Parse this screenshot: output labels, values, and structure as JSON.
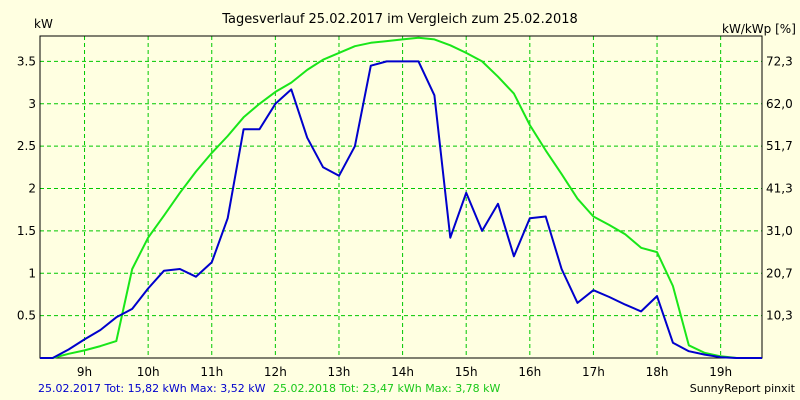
{
  "chart_data": {
    "type": "line",
    "title": "Tagesverlauf 25.02.2017 im Vergleich zum 25.02.2018",
    "ylabel_left": "kW",
    "ylabel_right": "kW/kWp [%]",
    "xlim": [
      8.3,
      19.65
    ],
    "ylim": [
      0,
      3.8
    ],
    "x_ticks": [
      9,
      10,
      11,
      12,
      13,
      14,
      15,
      16,
      17,
      18,
      19
    ],
    "x_tick_labels": [
      "9h",
      "10h",
      "11h",
      "12h",
      "13h",
      "14h",
      "15h",
      "16h",
      "17h",
      "18h",
      "19h"
    ],
    "y_ticks": [
      0.5,
      1,
      1.5,
      2,
      2.5,
      3,
      3.5
    ],
    "y_tick_labels": [
      "0.5",
      "1",
      "1.5",
      "2",
      "2.5",
      "3",
      "3.5"
    ],
    "y2_tick_labels": [
      "10,3",
      "20,7",
      "31,0",
      "41,3",
      "51,7",
      "62,0",
      "72,3"
    ],
    "grid": true,
    "colors": {
      "background": "#ffffe1",
      "plot_bg": "#ffffe1",
      "grid": "#00c800",
      "series_2017": "#0000cc",
      "series_2018": "#19e619",
      "axis": "#000000"
    },
    "series": [
      {
        "name": "25.02.2017",
        "color": "#0000cc",
        "points": [
          [
            8.3,
            0.0
          ],
          [
            8.5,
            0.0
          ],
          [
            8.75,
            0.1
          ],
          [
            9.0,
            0.22
          ],
          [
            9.25,
            0.33
          ],
          [
            9.5,
            0.48
          ],
          [
            9.75,
            0.58
          ],
          [
            10.0,
            0.82
          ],
          [
            10.25,
            1.03
          ],
          [
            10.5,
            1.05
          ],
          [
            10.75,
            0.96
          ],
          [
            11.0,
            1.13
          ],
          [
            11.25,
            1.65
          ],
          [
            11.5,
            2.7
          ],
          [
            11.75,
            2.7
          ],
          [
            12.0,
            3.0
          ],
          [
            12.25,
            3.17
          ],
          [
            12.5,
            2.6
          ],
          [
            12.75,
            2.25
          ],
          [
            13.0,
            2.15
          ],
          [
            13.25,
            2.5
          ],
          [
            13.5,
            3.45
          ],
          [
            13.75,
            3.5
          ],
          [
            14.0,
            3.5
          ],
          [
            14.25,
            3.5
          ],
          [
            14.5,
            3.1
          ],
          [
            14.75,
            1.42
          ],
          [
            15.0,
            1.95
          ],
          [
            15.25,
            1.5
          ],
          [
            15.5,
            1.82
          ],
          [
            15.75,
            1.2
          ],
          [
            16.0,
            1.65
          ],
          [
            16.25,
            1.67
          ],
          [
            16.5,
            1.05
          ],
          [
            16.75,
            0.65
          ],
          [
            17.0,
            0.8
          ],
          [
            17.25,
            0.72
          ],
          [
            17.5,
            0.63
          ],
          [
            17.75,
            0.55
          ],
          [
            18.0,
            0.73
          ],
          [
            18.25,
            0.18
          ],
          [
            18.5,
            0.08
          ],
          [
            18.75,
            0.04
          ],
          [
            19.0,
            0.01
          ],
          [
            19.25,
            0.0
          ],
          [
            19.65,
            0.0
          ]
        ]
      },
      {
        "name": "25.02.2018",
        "color": "#19e619",
        "points": [
          [
            8.3,
            0.0
          ],
          [
            8.5,
            0.0
          ],
          [
            8.75,
            0.05
          ],
          [
            9.0,
            0.09
          ],
          [
            9.25,
            0.14
          ],
          [
            9.5,
            0.2
          ],
          [
            9.75,
            1.05
          ],
          [
            10.0,
            1.42
          ],
          [
            10.25,
            1.68
          ],
          [
            10.5,
            1.95
          ],
          [
            10.75,
            2.2
          ],
          [
            11.0,
            2.42
          ],
          [
            11.25,
            2.62
          ],
          [
            11.5,
            2.84
          ],
          [
            11.75,
            3.0
          ],
          [
            12.0,
            3.14
          ],
          [
            12.25,
            3.25
          ],
          [
            12.5,
            3.4
          ],
          [
            12.75,
            3.52
          ],
          [
            13.0,
            3.6
          ],
          [
            13.25,
            3.68
          ],
          [
            13.5,
            3.72
          ],
          [
            13.75,
            3.74
          ],
          [
            14.0,
            3.76
          ],
          [
            14.25,
            3.78
          ],
          [
            14.5,
            3.76
          ],
          [
            14.75,
            3.69
          ],
          [
            15.0,
            3.6
          ],
          [
            15.25,
            3.5
          ],
          [
            15.5,
            3.32
          ],
          [
            15.75,
            3.12
          ],
          [
            16.0,
            2.75
          ],
          [
            16.25,
            2.45
          ],
          [
            16.5,
            2.17
          ],
          [
            16.75,
            1.88
          ],
          [
            17.0,
            1.67
          ],
          [
            17.25,
            1.57
          ],
          [
            17.5,
            1.46
          ],
          [
            17.75,
            1.3
          ],
          [
            18.0,
            1.25
          ],
          [
            18.25,
            0.85
          ],
          [
            18.5,
            0.15
          ],
          [
            18.75,
            0.06
          ],
          [
            19.0,
            0.02
          ],
          [
            19.25,
            0.0
          ],
          [
            19.65,
            0.0
          ]
        ]
      }
    ]
  },
  "footer": {
    "left_2017": "25.02.2017 Tot: 15,82 kWh Max: 3,52 kW",
    "left_2018": "25.02.2018 Tot: 23,47 kWh Max: 3,78 kW",
    "right": "SunnyReport pinxit"
  }
}
